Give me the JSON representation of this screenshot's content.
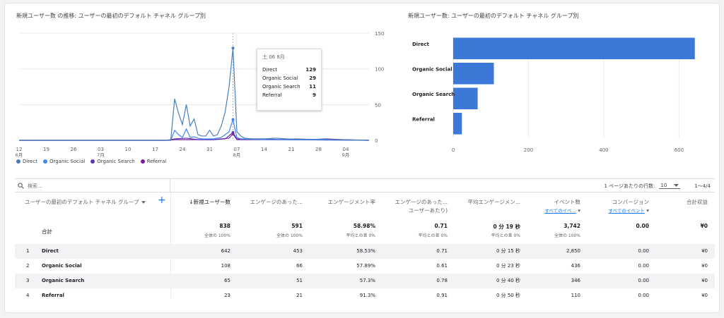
{
  "line_chart": {
    "title": "新規ユーザー数 の推移: ユーザーの最初のデフォルト チャネル グループ別",
    "y_ticks": [
      "150",
      "100",
      "50",
      "0"
    ],
    "x_ticks": [
      {
        "day": "12",
        "month": "6月"
      },
      {
        "day": "19",
        "month": ""
      },
      {
        "day": "26",
        "month": ""
      },
      {
        "day": "03",
        "month": "7月"
      },
      {
        "day": "10",
        "month": ""
      },
      {
        "day": "17",
        "month": ""
      },
      {
        "day": "24",
        "month": ""
      },
      {
        "day": "31",
        "month": ""
      },
      {
        "day": "07",
        "month": "8月"
      },
      {
        "day": "14",
        "month": ""
      },
      {
        "day": "21",
        "month": ""
      },
      {
        "day": "28",
        "month": ""
      },
      {
        "day": "04",
        "month": "9月"
      }
    ],
    "legend": [
      {
        "name": "Direct",
        "color": "#4a7ebb"
      },
      {
        "name": "Organic Social",
        "color": "#4285f4"
      },
      {
        "name": "Organic Search",
        "color": "#5e35b1"
      },
      {
        "name": "Referral",
        "color": "#7b1fa2"
      }
    ],
    "tooltip": {
      "date": "土 06 8月",
      "rows": [
        {
          "label": "Direct",
          "value": "129"
        },
        {
          "label": "Organic Social",
          "value": "29"
        },
        {
          "label": "Organic Search",
          "value": "11"
        },
        {
          "label": "Referral",
          "value": "9"
        }
      ]
    }
  },
  "bar_chart": {
    "title": "新規ユーザー数: ユーザーの最初のデフォルト チャネル グループ別",
    "x_ticks": [
      "0",
      "200",
      "400",
      "600"
    ],
    "color": "#3c78d8"
  },
  "chart_data": [
    {
      "type": "line",
      "title": "新規ユーザー数 の推移: ユーザーの最初のデフォルト チャネル グループ別",
      "x_start": "2023-06-12",
      "x_end": "2023-09-10",
      "ylim": [
        0,
        150
      ],
      "series": [
        {
          "name": "Direct",
          "points": [
            [
              "2023-07-20",
              0
            ],
            [
              "2023-07-21",
              0
            ],
            [
              "2023-07-22",
              58
            ],
            [
              "2023-07-23",
              38
            ],
            [
              "2023-07-24",
              22
            ],
            [
              "2023-07-25",
              50
            ],
            [
              "2023-07-26",
              20
            ],
            [
              "2023-07-27",
              30
            ],
            [
              "2023-07-28",
              8
            ],
            [
              "2023-07-29",
              6
            ],
            [
              "2023-07-30",
              6
            ],
            [
              "2023-07-31",
              14
            ],
            [
              "2023-08-01",
              6
            ],
            [
              "2023-08-02",
              8
            ],
            [
              "2023-08-03",
              20
            ],
            [
              "2023-08-04",
              40
            ],
            [
              "2023-08-05",
              75
            ],
            [
              "2023-08-06",
              129
            ],
            [
              "2023-08-07",
              12
            ],
            [
              "2023-08-08",
              6
            ],
            [
              "2023-08-09",
              3
            ],
            [
              "2023-08-11",
              2
            ],
            [
              "2023-08-14",
              2
            ],
            [
              "2023-08-17",
              3
            ],
            [
              "2023-08-20",
              2
            ],
            [
              "2023-09-10",
              0
            ]
          ]
        },
        {
          "name": "Organic Social",
          "points": [
            [
              "2023-07-20",
              0
            ],
            [
              "2023-07-21",
              0
            ],
            [
              "2023-07-22",
              14
            ],
            [
              "2023-07-23",
              8
            ],
            [
              "2023-07-24",
              4
            ],
            [
              "2023-07-25",
              16
            ],
            [
              "2023-07-26",
              4
            ],
            [
              "2023-07-27",
              5
            ],
            [
              "2023-07-28",
              3
            ],
            [
              "2023-07-29",
              2
            ],
            [
              "2023-07-30",
              2
            ],
            [
              "2023-08-01",
              2
            ],
            [
              "2023-08-03",
              4
            ],
            [
              "2023-08-05",
              12
            ],
            [
              "2023-08-06",
              29
            ],
            [
              "2023-08-07",
              4
            ],
            [
              "2023-08-08",
              2
            ],
            [
              "2023-08-14",
              1
            ],
            [
              "2023-09-10",
              0
            ]
          ]
        },
        {
          "name": "Organic Search",
          "points": [
            [
              "2023-07-20",
              0
            ],
            [
              "2023-07-22",
              2
            ],
            [
              "2023-07-25",
              3
            ],
            [
              "2023-07-28",
              1
            ],
            [
              "2023-08-01",
              1
            ],
            [
              "2023-08-04",
              2
            ],
            [
              "2023-08-06",
              11
            ],
            [
              "2023-08-07",
              2
            ],
            [
              "2023-08-10",
              2
            ],
            [
              "2023-08-14",
              2
            ],
            [
              "2023-08-18",
              1
            ],
            [
              "2023-08-22",
              2
            ],
            [
              "2023-08-26",
              1
            ],
            [
              "2023-08-30",
              2
            ],
            [
              "2023-09-03",
              1
            ],
            [
              "2023-09-10",
              0
            ]
          ]
        },
        {
          "name": "Referral",
          "points": [
            [
              "2023-07-20",
              0
            ],
            [
              "2023-07-22",
              1
            ],
            [
              "2023-07-25",
              1
            ],
            [
              "2023-08-01",
              1
            ],
            [
              "2023-08-05",
              3
            ],
            [
              "2023-08-06",
              9
            ],
            [
              "2023-08-07",
              1
            ],
            [
              "2023-08-12",
              1
            ],
            [
              "2023-08-19",
              1
            ],
            [
              "2023-09-10",
              0
            ]
          ]
        }
      ]
    },
    {
      "type": "bar",
      "orientation": "horizontal",
      "title": "新規ユーザー数: ユーザーの最初のデフォルト チャネル グループ別",
      "categories": [
        "Direct",
        "Organic Social",
        "Organic Search",
        "Referral"
      ],
      "values": [
        642,
        108,
        65,
        23
      ],
      "xlim": [
        0,
        650
      ]
    }
  ],
  "toolbar": {
    "search_placeholder": "検索...",
    "rows_per_page_label": "1 ページあたりの行数:",
    "rows_per_page_value": "10",
    "pagination": "1〜4/4"
  },
  "table": {
    "dimension_header": "ユーザーの最初のデフォルト チャネル グループ",
    "headers": [
      {
        "label": "↓新規ユーザー数",
        "sub": ""
      },
      {
        "label": "エンゲージのあった...",
        "sub": ""
      },
      {
        "label": "エンゲージメント率",
        "sub": ""
      },
      {
        "label": "エンゲージのあった...",
        "label2": "ユーザーあたり)",
        "sub": ""
      },
      {
        "label": "平均エンゲージメン...",
        "sub": ""
      },
      {
        "label": "イベント数",
        "sub": "すべてのイベ..."
      },
      {
        "label": "コンバージョン",
        "sub": "すべてのイベント"
      },
      {
        "label": "合計収益",
        "sub": ""
      }
    ],
    "totals": {
      "label": "合計",
      "cells": [
        {
          "main": "838",
          "sub": "全体の 100%"
        },
        {
          "main": "591",
          "sub": "全体の 100%"
        },
        {
          "main": "58.98%",
          "sub": "平均との差 0%"
        },
        {
          "main": "0.71",
          "sub": "平均との差 0%"
        },
        {
          "main": "0 分 19 秒",
          "sub": "平均との差 0%"
        },
        {
          "main": "3,742",
          "sub": "全体の 100%"
        },
        {
          "main": "0.00",
          "sub": ""
        },
        {
          "main": "¥0",
          "sub": ""
        }
      ]
    },
    "rows": [
      {
        "idx": "1",
        "name": "Direct",
        "cells": [
          "642",
          "453",
          "58.53%",
          "0.71",
          "0 分 15 秒",
          "2,850",
          "0.00",
          "¥0"
        ]
      },
      {
        "idx": "2",
        "name": "Organic Social",
        "cells": [
          "108",
          "66",
          "57.89%",
          "0.61",
          "0 分 23 秒",
          "436",
          "0.00",
          "¥0"
        ]
      },
      {
        "idx": "3",
        "name": "Organic Search",
        "cells": [
          "65",
          "51",
          "57.3%",
          "0.78",
          "0 分 40 秒",
          "346",
          "0.00",
          "¥0"
        ]
      },
      {
        "idx": "4",
        "name": "Referral",
        "cells": [
          "23",
          "21",
          "91.3%",
          "0.91",
          "0 分 50 秒",
          "110",
          "0.00",
          "¥0"
        ]
      }
    ]
  }
}
